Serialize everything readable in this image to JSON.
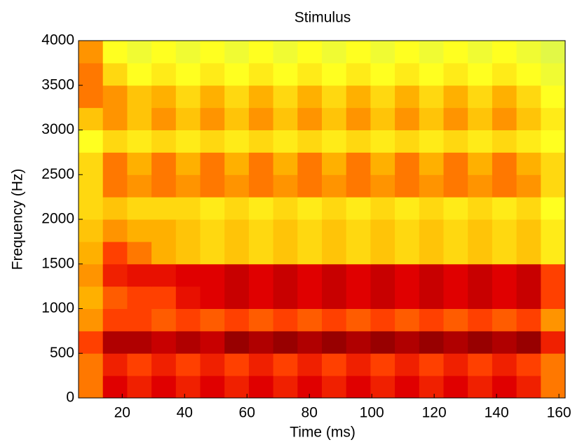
{
  "chart_data": {
    "type": "heatmap",
    "title": "Stimulus",
    "xlabel": "Time (ms)",
    "ylabel": "Frequency (Hz)",
    "xlim": [
      6,
      162
    ],
    "ylim": [
      0,
      4000
    ],
    "xticks": [
      20,
      40,
      60,
      80,
      100,
      120,
      140,
      160
    ],
    "yticks": [
      0,
      500,
      1000,
      1500,
      2000,
      2500,
      3000,
      3500,
      4000
    ],
    "colormap": [
      "#c4f06c",
      "#ffff20",
      "#ffb000",
      "#ff4000",
      "#e00000",
      "#800000"
    ],
    "x": [
      9.9,
      17.7,
      25.5,
      33.3,
      41.1,
      48.9,
      56.7,
      64.5,
      72.3,
      80.1,
      87.9,
      95.7,
      103.5,
      111.3,
      119.1,
      126.9,
      134.7,
      142.5,
      150.3,
      158.1
    ],
    "y": [
      125,
      375,
      625,
      875,
      1125,
      1375,
      1625,
      1875,
      2125,
      2375,
      2625,
      2875,
      3125,
      3375,
      3625,
      3875
    ],
    "z": [
      [
        0.5,
        0.8,
        0.7,
        0.8,
        0.7,
        0.8,
        0.7,
        0.8,
        0.7,
        0.8,
        0.7,
        0.8,
        0.7,
        0.8,
        0.7,
        0.8,
        0.7,
        0.8,
        0.7,
        0.5
      ],
      [
        0.5,
        0.7,
        0.6,
        0.7,
        0.6,
        0.7,
        0.6,
        0.7,
        0.6,
        0.7,
        0.6,
        0.7,
        0.6,
        0.7,
        0.6,
        0.7,
        0.6,
        0.7,
        0.6,
        0.5
      ],
      [
        0.6,
        0.9,
        0.9,
        0.85,
        0.9,
        0.85,
        0.95,
        0.9,
        0.95,
        0.9,
        0.95,
        0.9,
        0.95,
        0.9,
        0.95,
        0.9,
        0.95,
        0.9,
        0.95,
        0.7
      ],
      [
        0.45,
        0.6,
        0.6,
        0.55,
        0.6,
        0.55,
        0.6,
        0.55,
        0.6,
        0.55,
        0.6,
        0.55,
        0.6,
        0.55,
        0.6,
        0.55,
        0.6,
        0.55,
        0.6,
        0.45
      ],
      [
        0.4,
        0.55,
        0.6,
        0.6,
        0.75,
        0.8,
        0.85,
        0.8,
        0.85,
        0.8,
        0.85,
        0.8,
        0.85,
        0.8,
        0.85,
        0.8,
        0.85,
        0.8,
        0.85,
        0.6
      ],
      [
        0.45,
        0.7,
        0.75,
        0.75,
        0.8,
        0.8,
        0.85,
        0.8,
        0.85,
        0.8,
        0.85,
        0.8,
        0.85,
        0.8,
        0.85,
        0.8,
        0.85,
        0.8,
        0.85,
        0.6
      ],
      [
        0.4,
        0.6,
        0.5,
        0.4,
        0.35,
        0.3,
        0.35,
        0.3,
        0.35,
        0.3,
        0.35,
        0.3,
        0.35,
        0.3,
        0.35,
        0.3,
        0.35,
        0.3,
        0.35,
        0.25
      ],
      [
        0.35,
        0.45,
        0.4,
        0.4,
        0.35,
        0.3,
        0.35,
        0.3,
        0.35,
        0.3,
        0.35,
        0.3,
        0.35,
        0.3,
        0.35,
        0.3,
        0.35,
        0.3,
        0.35,
        0.25
      ],
      [
        0.3,
        0.35,
        0.3,
        0.3,
        0.3,
        0.25,
        0.3,
        0.25,
        0.3,
        0.25,
        0.3,
        0.25,
        0.3,
        0.25,
        0.3,
        0.25,
        0.3,
        0.25,
        0.3,
        0.2
      ],
      [
        0.3,
        0.5,
        0.45,
        0.5,
        0.45,
        0.5,
        0.45,
        0.5,
        0.45,
        0.5,
        0.45,
        0.5,
        0.45,
        0.5,
        0.45,
        0.5,
        0.45,
        0.5,
        0.45,
        0.3
      ],
      [
        0.3,
        0.5,
        0.4,
        0.5,
        0.4,
        0.5,
        0.4,
        0.5,
        0.4,
        0.5,
        0.4,
        0.5,
        0.4,
        0.5,
        0.4,
        0.5,
        0.4,
        0.5,
        0.4,
        0.3
      ],
      [
        0.2,
        0.3,
        0.25,
        0.3,
        0.25,
        0.3,
        0.25,
        0.3,
        0.25,
        0.3,
        0.25,
        0.3,
        0.25,
        0.3,
        0.25,
        0.3,
        0.25,
        0.3,
        0.25,
        0.2
      ],
      [
        0.35,
        0.45,
        0.35,
        0.45,
        0.35,
        0.45,
        0.35,
        0.45,
        0.35,
        0.45,
        0.35,
        0.45,
        0.35,
        0.45,
        0.35,
        0.45,
        0.35,
        0.45,
        0.35,
        0.25
      ],
      [
        0.5,
        0.45,
        0.35,
        0.4,
        0.3,
        0.4,
        0.3,
        0.4,
        0.3,
        0.4,
        0.3,
        0.4,
        0.3,
        0.4,
        0.3,
        0.4,
        0.3,
        0.4,
        0.3,
        0.2
      ],
      [
        0.5,
        0.3,
        0.2,
        0.25,
        0.2,
        0.25,
        0.2,
        0.25,
        0.2,
        0.25,
        0.2,
        0.25,
        0.2,
        0.25,
        0.2,
        0.25,
        0.2,
        0.25,
        0.2,
        0.15
      ],
      [
        0.45,
        0.2,
        0.15,
        0.2,
        0.15,
        0.2,
        0.15,
        0.2,
        0.15,
        0.2,
        0.15,
        0.2,
        0.15,
        0.2,
        0.15,
        0.2,
        0.15,
        0.2,
        0.15,
        0.1
      ]
    ]
  }
}
